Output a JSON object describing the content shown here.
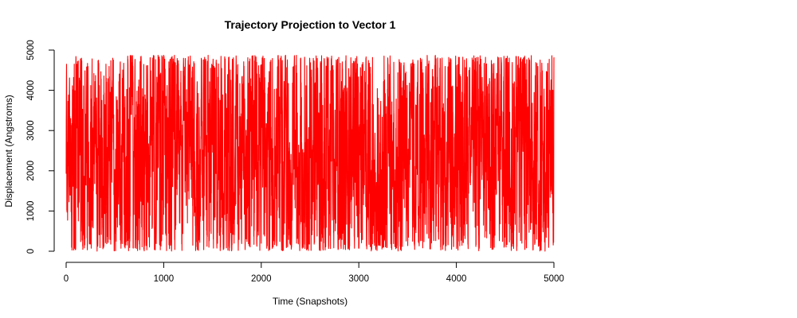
{
  "chart_data": {
    "type": "line",
    "title": "Trajectory Projection to Vector 1",
    "xlabel": "Time (Snapshots)",
    "ylabel": "Displacement (Angstroms)",
    "xlim": [
      0,
      5000
    ],
    "ylim": [
      0,
      5000
    ],
    "xticks": [
      0,
      1000,
      2000,
      3000,
      4000,
      5000
    ],
    "yticks": [
      0,
      1000,
      2000,
      3000,
      4000,
      5000
    ],
    "x_range": [
      0,
      5000
    ],
    "y_range": [
      0,
      4870
    ],
    "n_points": 5000,
    "grid": false,
    "legend": "none",
    "series": [
      {
        "color": "#ff0000",
        "description": "dense random fluctuation across full range"
      }
    ]
  }
}
